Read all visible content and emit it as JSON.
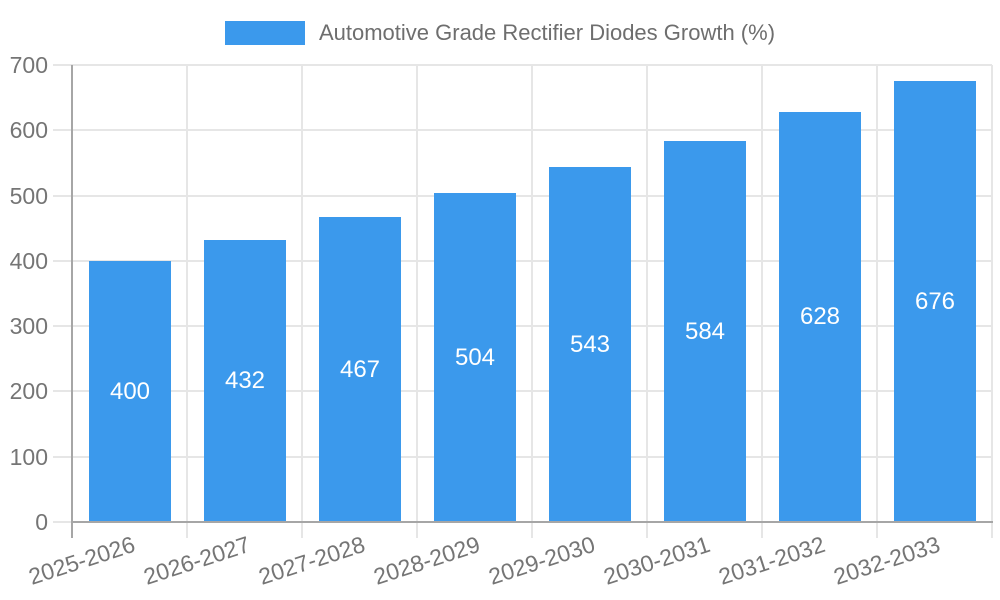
{
  "chart_data": {
    "type": "bar",
    "title": "Automotive Grade Rectifier Diodes Growth (%)",
    "categories": [
      "2025-2026",
      "2026-2027",
      "2027-2028",
      "2028-2029",
      "2029-2030",
      "2030-2031",
      "2031-2032",
      "2032-2033"
    ],
    "values": [
      400,
      432,
      467,
      504,
      543,
      584,
      628,
      676
    ],
    "xlabel": "",
    "ylabel": "",
    "ylim": [
      0,
      700
    ],
    "ytick_step": 100,
    "yticks": [
      0,
      100,
      200,
      300,
      400,
      500,
      600,
      700
    ],
    "grid": true,
    "legend": {
      "position": "top",
      "label": "Automotive Grade Rectifier Diodes Growth (%)"
    },
    "colors": {
      "bar": "#3b99ec",
      "grid": "#e6e6e6",
      "axis": "#a6a6a6",
      "tick_text": "#757575",
      "legend_text": "#6e6e6e",
      "value_label": "#ffffff",
      "background": "#ffffff"
    }
  }
}
